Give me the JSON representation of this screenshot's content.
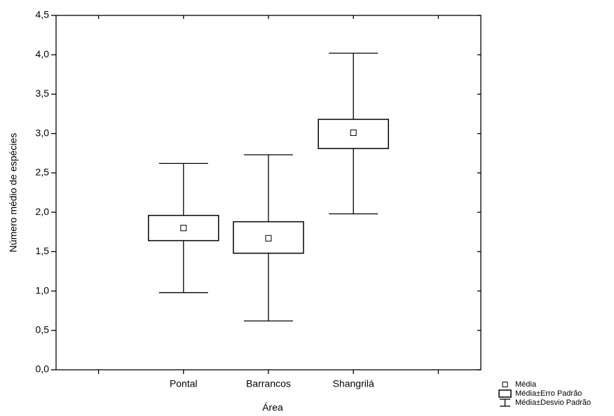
{
  "chart_data": {
    "type": "mean-se-sd",
    "ylabel": "Número médio de espécies",
    "xlabel": "Área",
    "categories": [
      null,
      "Pontal",
      "Barrancos",
      "Shangrilá",
      null
    ],
    "series": [
      {
        "name": "Média",
        "color": "#000000",
        "values": [
          null,
          1.8,
          1.67,
          3.01,
          null
        ]
      },
      {
        "name": "Média±Erro Padrão",
        "color": "#000000",
        "low": [
          null,
          1.64,
          1.48,
          2.81,
          null
        ],
        "high": [
          null,
          1.96,
          1.88,
          3.18,
          null
        ]
      },
      {
        "name": "Média±Desvio Padrão",
        "color": "#000000",
        "low": [
          null,
          0.98,
          0.62,
          1.98,
          null
        ],
        "high": [
          null,
          2.62,
          2.73,
          4.02,
          null
        ]
      }
    ],
    "ylim": [
      0,
      4.5
    ],
    "yticks": [
      {
        "value": 0,
        "label": "0,0"
      },
      {
        "value": 0.5,
        "label": "0,5"
      },
      {
        "value": 1,
        "label": "1,0"
      },
      {
        "value": 1.5,
        "label": "1,5"
      },
      {
        "value": 2,
        "label": "2,0"
      },
      {
        "value": 2.5,
        "label": "2,5"
      },
      {
        "value": 3,
        "label": "3,0"
      },
      {
        "value": 3.5,
        "label": "3,5"
      },
      {
        "value": 4,
        "label": "4,0"
      },
      {
        "value": 4.5,
        "label": "4,5"
      }
    ],
    "legend": "bottom-right"
  }
}
